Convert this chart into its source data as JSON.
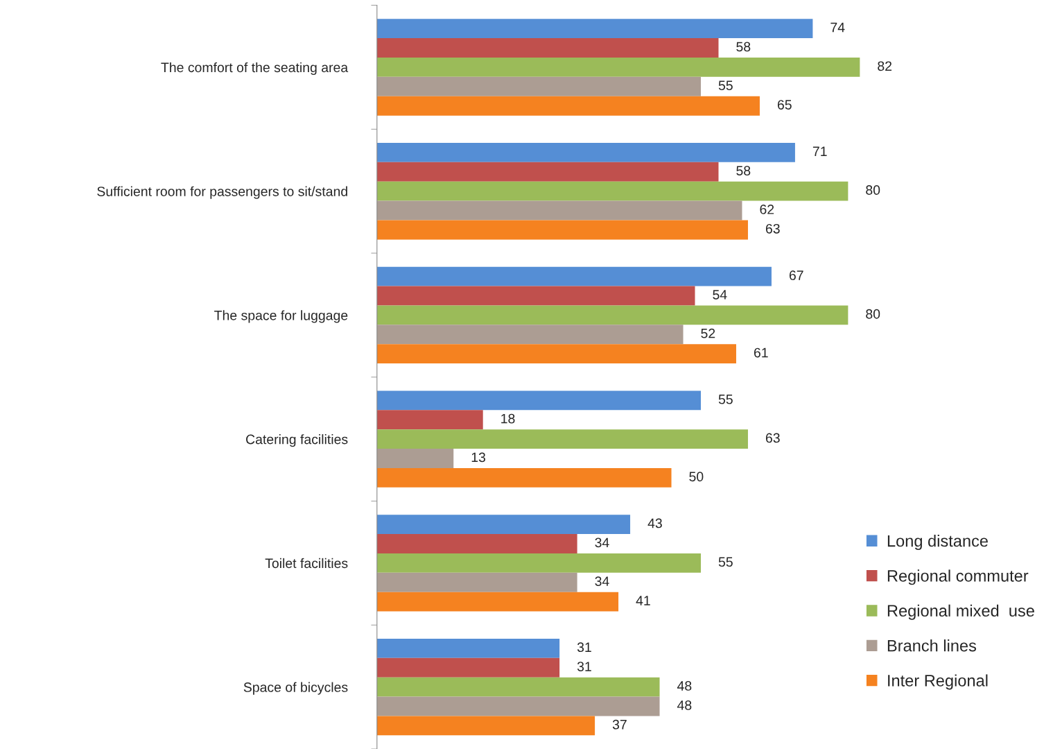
{
  "chart_data": {
    "type": "bar",
    "orientation": "horizontal",
    "data_labels": true,
    "legend": "bottom right",
    "grid": false,
    "categories": [
      "The comfort of the seating area",
      "Sufficient room for passengers to sit/stand",
      "The space for luggage",
      "Catering facilities",
      "Toilet facilities",
      "Space of bicycles"
    ],
    "series": [
      {
        "name": "Long distance",
        "color": "#558ed5",
        "values": [
          74,
          71,
          67,
          55,
          43,
          31
        ]
      },
      {
        "name": "Regional commuter",
        "color": "#c0504d",
        "values": [
          58,
          58,
          54,
          18,
          34,
          31
        ]
      },
      {
        "name": "Regional mixed  use",
        "color": "#9bbb59",
        "values": [
          82,
          80,
          80,
          63,
          55,
          48
        ]
      },
      {
        "name": "Branch lines",
        "color": "#ac9d93",
        "values": [
          55,
          62,
          52,
          13,
          34,
          48
        ]
      },
      {
        "name": "Inter Regional",
        "color": "#f58220",
        "values": [
          65,
          63,
          61,
          50,
          41,
          37
        ]
      }
    ]
  }
}
